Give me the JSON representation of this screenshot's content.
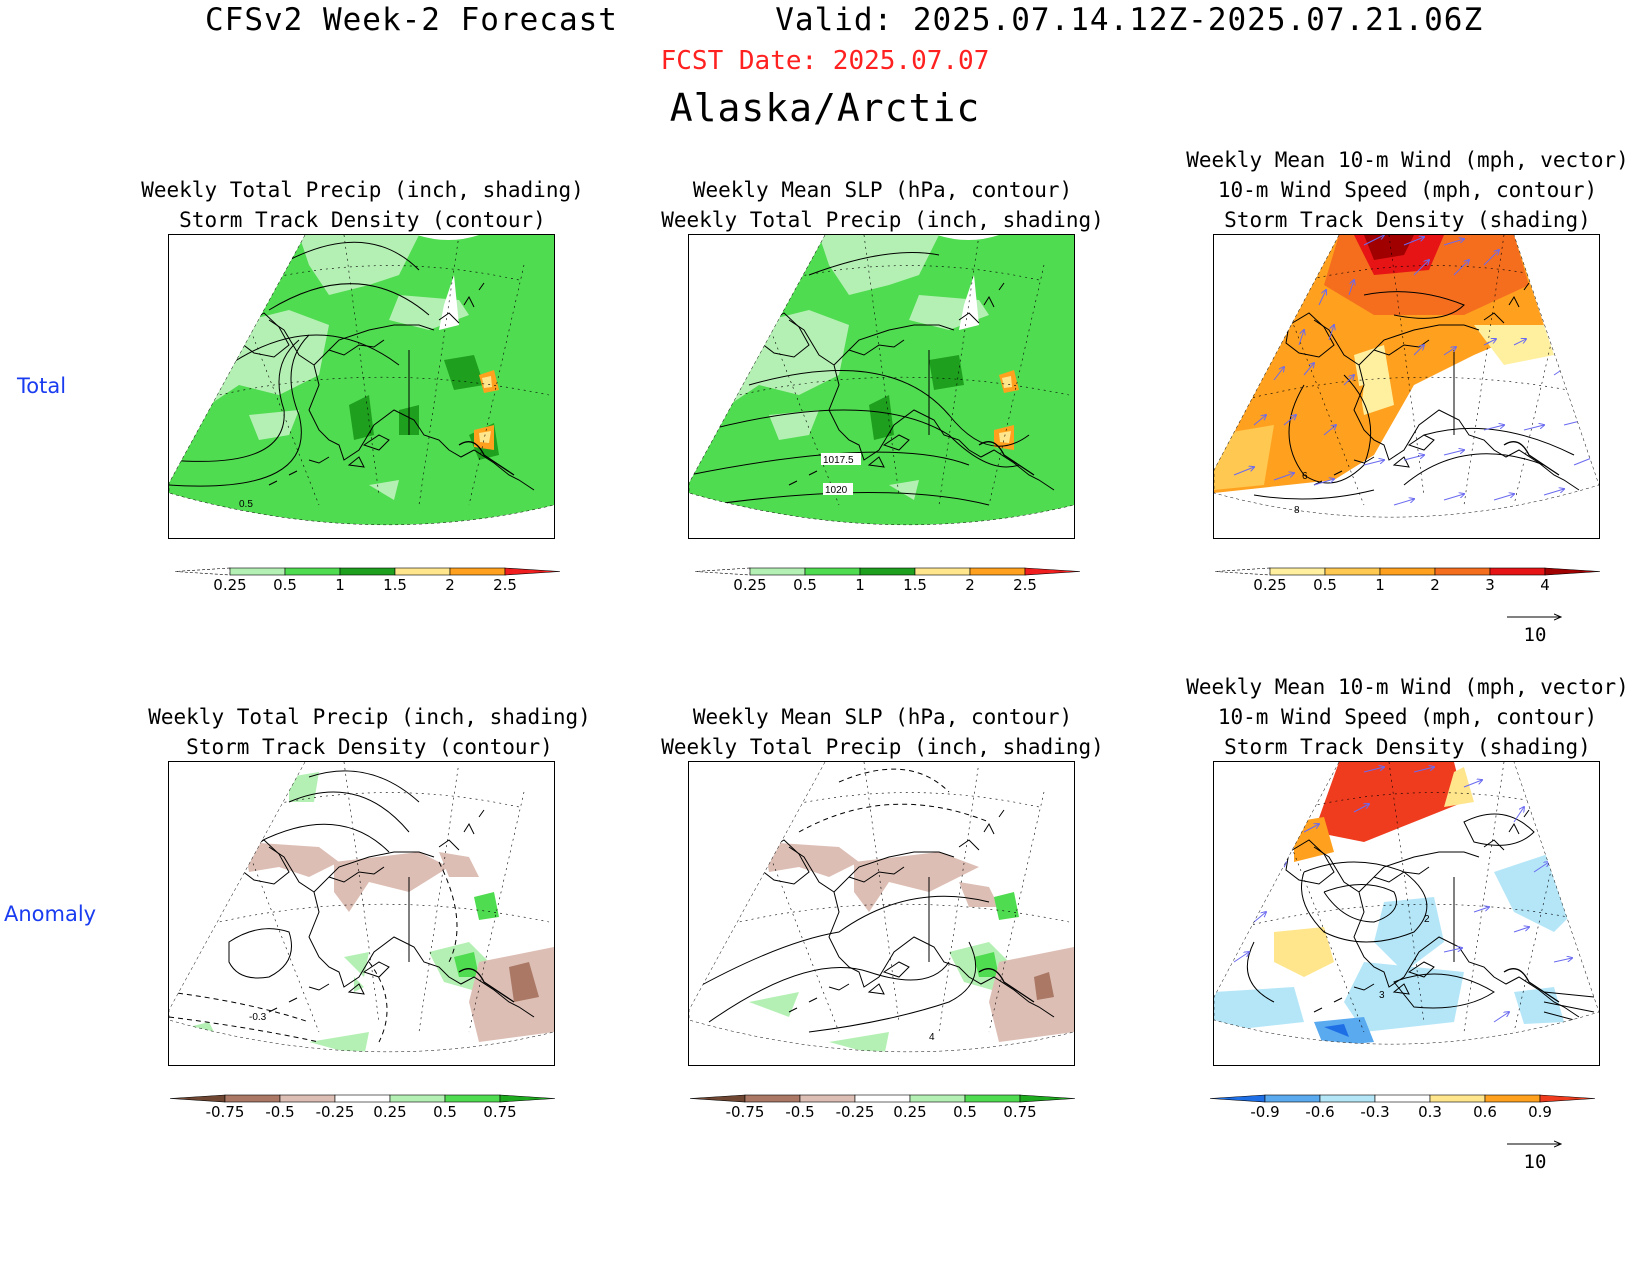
{
  "header": {
    "title_left": "CFSv2 Week-2 Forecast",
    "title_right": "Valid: 2025.07.14.12Z-2025.07.21.06Z",
    "fcst_date": "FCST Date: 2025.07.07",
    "region": "Alaska/Arctic"
  },
  "rows": [
    {
      "label": "Total"
    },
    {
      "label": "Anomaly"
    }
  ],
  "panels": {
    "total_precip": {
      "title_line1": "Weekly Total Precip (inch, shading)",
      "title_line2": "Storm Track Density (contour)",
      "contour_label": "0.5"
    },
    "total_slp": {
      "title_line1": "Weekly Mean SLP (hPa, contour)",
      "title_line2": "Weekly Total Precip (inch, shading)",
      "contour_labels": [
        "1017.5",
        "1020"
      ]
    },
    "total_wind": {
      "title_line1": "Weekly Mean 10-m Wind (mph, vector)",
      "title_line2": "10-m Wind Speed (mph, contour)",
      "title_line3": "Storm Track Density (shading)",
      "contour_labels": [
        "6",
        "8"
      ]
    },
    "anom_precip": {
      "title_line1": "Weekly Total Precip (inch, shading)",
      "title_line2": "Storm Track Density (contour)",
      "contour_label": "-0.3"
    },
    "anom_slp": {
      "title_line1": "Weekly Mean SLP (hPa, contour)",
      "title_line2": "Weekly Total Precip (inch, shading)",
      "contour_label": "4"
    },
    "anom_wind": {
      "title_line1": "Weekly Mean 10-m Wind (mph, vector)",
      "title_line2": "10-m Wind Speed (mph, contour)",
      "title_line3": "Storm Track Density (shading)",
      "contour_labels": [
        "2",
        "3"
      ]
    }
  },
  "colorbars": {
    "precip_total": {
      "ticks": [
        "0.25",
        "0.5",
        "1",
        "1.5",
        "2",
        "2.5"
      ],
      "colors": [
        "#ffffff",
        "#b4f0b4",
        "#50dc50",
        "#1ea01e",
        "#ffe68c",
        "#ffa01e",
        "#f01e1e"
      ]
    },
    "storm_total": {
      "ticks": [
        "0.25",
        "0.5",
        "1",
        "2",
        "3",
        "4"
      ],
      "colors": [
        "#ffffff",
        "#fff0a0",
        "#ffc850",
        "#ffa01e",
        "#f56e1e",
        "#e61414",
        "#a00000"
      ]
    },
    "precip_anom": {
      "ticks": [
        "-0.75",
        "-0.5",
        "-0.25",
        "0.25",
        "0.5",
        "0.75"
      ],
      "colors": [
        "#6e4632",
        "#aa7864",
        "#dcbeb4",
        "#ffffff",
        "#b4f0b4",
        "#50dc50",
        "#1eaa1e"
      ]
    },
    "storm_anom": {
      "ticks": [
        "-0.9",
        "-0.6",
        "-0.3",
        "0.3",
        "0.6",
        "0.9"
      ],
      "colors": [
        "#1e6ee6",
        "#5aaaf0",
        "#b4e6f8",
        "#ffffff",
        "#ffe68c",
        "#ffa01e",
        "#f03c1e"
      ]
    }
  },
  "vector_reference": {
    "value": "10"
  }
}
